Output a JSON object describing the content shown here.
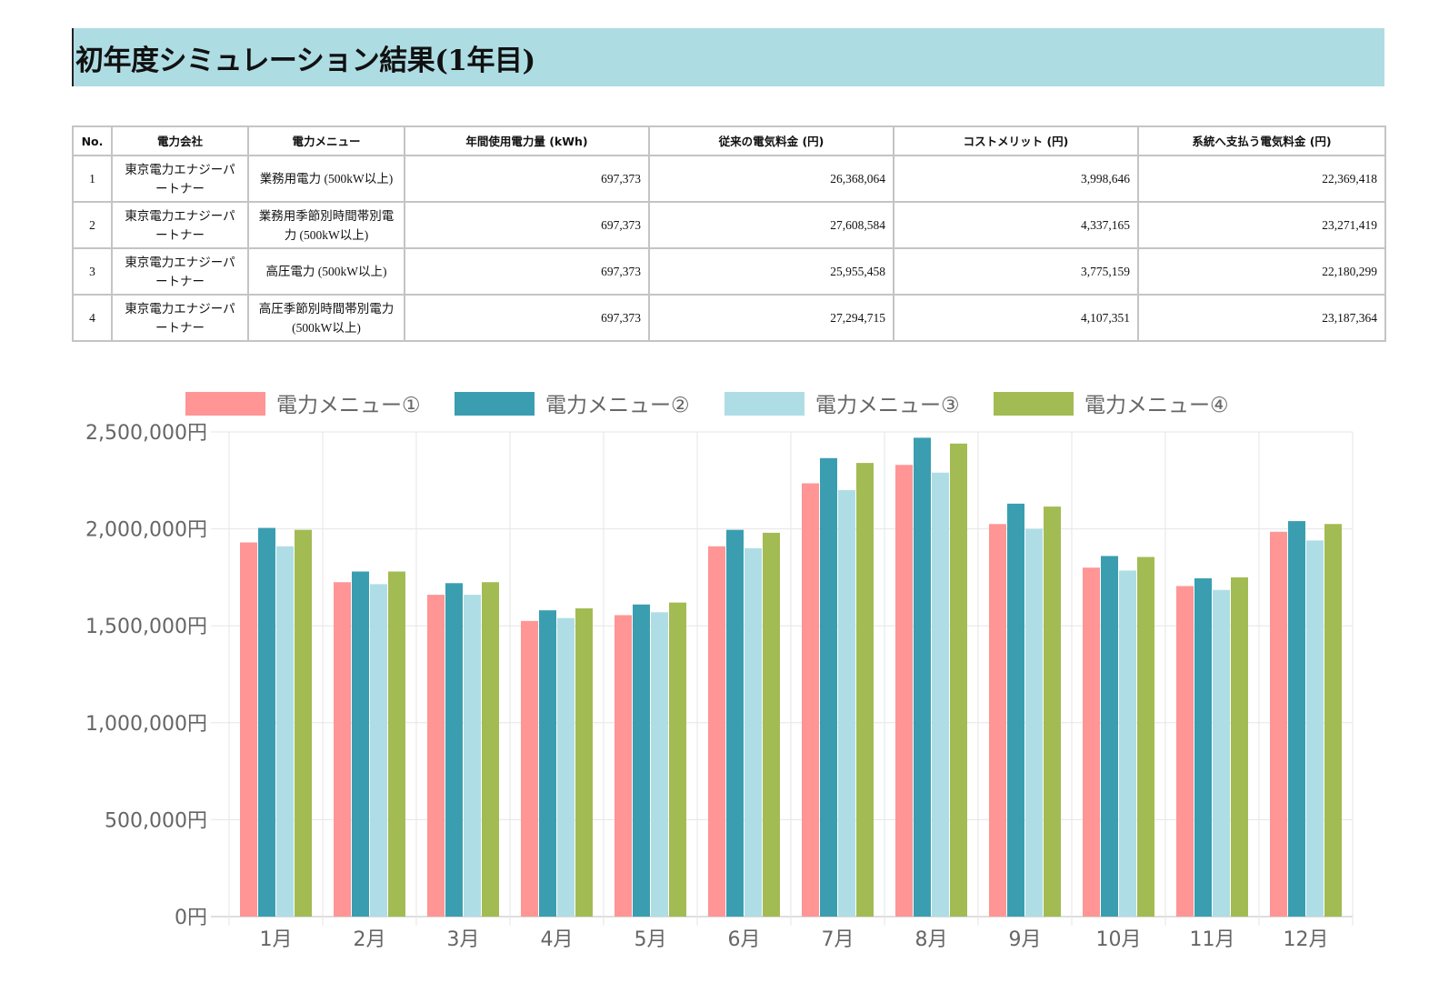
{
  "page": {
    "title": "初年度シミュレーション結果(1年目)"
  },
  "table": {
    "headers": [
      "No.",
      "電力会社",
      "電力メニュー",
      "年間使用電力量 (kWh)",
      "従来の電気料金 (円)",
      "コストメリット (円)",
      "系統へ支払う電気料金 (円)"
    ],
    "rows": [
      {
        "no": "1",
        "company": "東京電力エナジーパートナー",
        "menu": "業務用電力 (500kW以上)",
        "usage": "697,373",
        "conventional": "26,368,064",
        "merit": "3,998,646",
        "grid": "22,369,418"
      },
      {
        "no": "2",
        "company": "東京電力エナジーパートナー",
        "menu": "業務用季節別時間帯別電力 (500kW以上)",
        "usage": "697,373",
        "conventional": "27,608,584",
        "merit": "4,337,165",
        "grid": "23,271,419"
      },
      {
        "no": "3",
        "company": "東京電力エナジーパートナー",
        "menu": "高圧電力 (500kW以上)",
        "usage": "697,373",
        "conventional": "25,955,458",
        "merit": "3,775,159",
        "grid": "22,180,299"
      },
      {
        "no": "4",
        "company": "東京電力エナジーパートナー",
        "menu": "高圧季節別時間帯別電力 (500kW以上)",
        "usage": "697,373",
        "conventional": "27,294,715",
        "merit": "4,107,351",
        "grid": "23,187,364"
      }
    ]
  },
  "chart_data": {
    "type": "bar",
    "categories": [
      "1月",
      "2月",
      "3月",
      "4月",
      "5月",
      "6月",
      "7月",
      "8月",
      "9月",
      "10月",
      "11月",
      "12月"
    ],
    "series": [
      {
        "name": "電力メニュー①",
        "color": "#ff9595",
        "values": [
          1930000,
          1725000,
          1660000,
          1525000,
          1555000,
          1910000,
          2235000,
          2330000,
          2025000,
          1800000,
          1705000,
          1985000
        ]
      },
      {
        "name": "電力メニュー②",
        "color": "#3a9eb0",
        "values": [
          2005000,
          1780000,
          1720000,
          1580000,
          1610000,
          1995000,
          2365000,
          2470000,
          2130000,
          1860000,
          1745000,
          2040000
        ]
      },
      {
        "name": "電力メニュー③",
        "color": "#afdde5",
        "values": [
          1910000,
          1715000,
          1660000,
          1540000,
          1570000,
          1900000,
          2200000,
          2290000,
          2000000,
          1785000,
          1685000,
          1940000
        ]
      },
      {
        "name": "電力メニュー④",
        "color": "#a3bb53",
        "values": [
          1995000,
          1780000,
          1725000,
          1590000,
          1620000,
          1980000,
          2340000,
          2440000,
          2115000,
          1855000,
          1750000,
          2025000
        ]
      }
    ],
    "ylim": [
      0,
      2500000
    ],
    "yticks": [
      "0円",
      "500,000円",
      "1,000,000円",
      "1,500,000円",
      "2,000,000円",
      "2,500,000円"
    ],
    "legend_position": "top",
    "grid": true
  }
}
